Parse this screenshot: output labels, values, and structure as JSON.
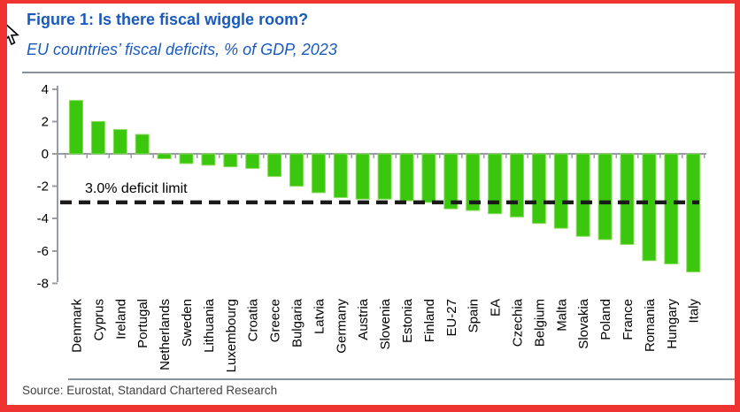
{
  "figure": {
    "title": "Figure 1: Is there fiscal wiggle room?",
    "subtitle": "EU countries’ fiscal deficits, % of GDP, 2023",
    "source": "Source: Eurostat, Standard Chartered Research"
  },
  "decorations": {
    "cursor_icon": "mouse-pointer-icon",
    "frame": "red-border-frame"
  },
  "colors": {
    "frame_red": "#ee3330",
    "title_blue": "#1a5abd",
    "bar_green": "#3ac70e",
    "bar_green_edge": "#8cdd5e",
    "axis_gray": "#979da5",
    "separator_gray": "#8a929b",
    "dashed_line_black": "#1a1a1a",
    "label_black": "#000000",
    "source_gray": "#414141"
  },
  "chart_data": {
    "type": "bar",
    "title": "Figure 1: Is there fiscal wiggle room?",
    "subtitle": "EU countries’ fiscal deficits, % of GDP, 2023",
    "xlabel": "",
    "ylabel": "% of GDP",
    "ylim": [
      -8,
      4
    ],
    "yticks": [
      4,
      2,
      0,
      -2,
      -4,
      -6,
      -8
    ],
    "grid": false,
    "legend": "none",
    "categories": [
      "Denmark",
      "Cyprus",
      "Ireland",
      "Portugal",
      "Netherlands",
      "Sweden",
      "Lithuania",
      "Luxembourg",
      "Croatia",
      "Greece",
      "Bulgaria",
      "Latvia",
      "Germany",
      "Austria",
      "Slovenia",
      "Estonia",
      "Finland",
      "EU-27",
      "Spain",
      "EA",
      "Czechia",
      "Belgium",
      "Malta",
      "Slovakia",
      "Poland",
      "France",
      "Romania",
      "Hungary",
      "Italy"
    ],
    "values": [
      3.3,
      2.0,
      1.5,
      1.2,
      -0.3,
      -0.6,
      -0.7,
      -0.8,
      -0.9,
      -1.4,
      -2.0,
      -2.4,
      -2.7,
      -2.8,
      -2.8,
      -2.9,
      -3.0,
      -3.4,
      -3.5,
      -3.7,
      -3.9,
      -4.3,
      -4.6,
      -5.1,
      -5.3,
      -5.6,
      -6.6,
      -6.8,
      -7.3
    ],
    "reference_line": {
      "value": -3.0,
      "label": "3.0% deficit limit",
      "style": "dashed"
    }
  }
}
